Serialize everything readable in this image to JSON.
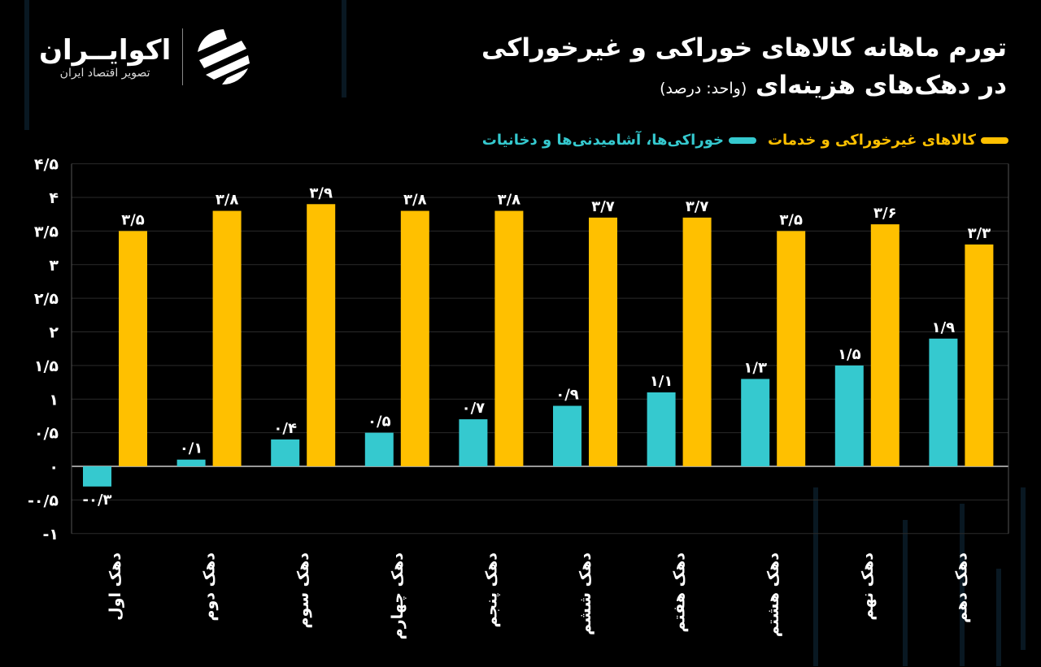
{
  "header": {
    "title_line1": "تورم ماهانه کالاهای خوراکی و غیرخوراکی",
    "title_line2": "در دهک‌های هزینه‌ای",
    "unit": "(واحد: درصد)"
  },
  "logo": {
    "name": "اکوایــران",
    "tagline": "تصویر اقتصاد ایران"
  },
  "colors": {
    "yellow": "#FFC000",
    "teal": "#35C9CF",
    "background": "#000000"
  },
  "chart_data": {
    "type": "bar",
    "title": "تورم ماهانه کالاهای خوراکی و غیرخوراکی در دهک‌های هزینه‌ای",
    "ylabel": "درصد",
    "ylim": [
      -1,
      4.5
    ],
    "yticks": [
      4.5,
      4,
      3.5,
      3,
      2.5,
      2,
      1.5,
      1,
      0.5,
      0,
      -0.5,
      -1
    ],
    "ytick_labels": [
      "۴/۵",
      "۴",
      "۳/۵",
      "۳",
      "۲/۵",
      "۲",
      "۱/۵",
      "۱",
      "۰/۵",
      "۰",
      "-۰/۵",
      "-۱"
    ],
    "grid": true,
    "legend_position": "top-right",
    "categories": [
      "دهک اول",
      "دهک دوم",
      "دهک سوم",
      "دهک چهارم",
      "دهک پنجم",
      "دهک ششم",
      "دهک هفتم",
      "دهک هشتم",
      "دهک نهم",
      "دهک دهم"
    ],
    "series": [
      {
        "name": "خوراکی‌ها، آشامیدنی‌ها و دخانیات",
        "color": "#35C9CF",
        "values": [
          -0.3,
          0.1,
          0.4,
          0.5,
          0.7,
          0.9,
          1.1,
          1.3,
          1.5,
          1.9
        ],
        "labels": [
          "-۰/۳",
          "۰/۱",
          "۰/۴",
          "۰/۵",
          "۰/۷",
          "۰/۹",
          "۱/۱",
          "۱/۳",
          "۱/۵",
          "۱/۹"
        ]
      },
      {
        "name": "کالاهای غیرخوراکی و خدمات",
        "color": "#FFC000",
        "values": [
          3.5,
          3.8,
          3.9,
          3.8,
          3.8,
          3.7,
          3.7,
          3.5,
          3.6,
          3.3
        ],
        "labels": [
          "۳/۵",
          "۳/۸",
          "۳/۹",
          "۳/۸",
          "۳/۸",
          "۳/۷",
          "۳/۷",
          "۳/۵",
          "۳/۶",
          "۳/۳"
        ]
      }
    ]
  }
}
